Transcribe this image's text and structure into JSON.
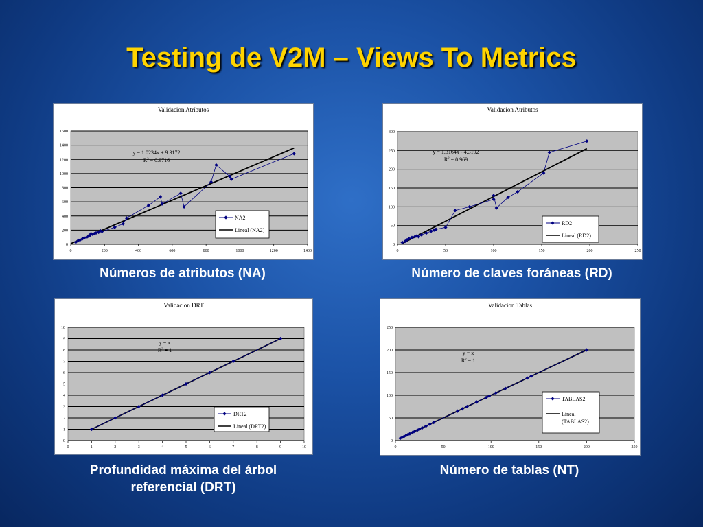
{
  "slide": {
    "title": "Testing de V2M – Views To Metrics",
    "captions": [
      "Números de atributos (NA)",
      "Número de claves foráneas (RD)",
      "Profundidad máxima del  árbol referencial (DRT)",
      "Número de tablas (NT)"
    ]
  },
  "colors": {
    "title": "#ffd400",
    "plot_area": "#c0c0c0",
    "series": "#000080",
    "trend": "#000000"
  },
  "chart_data": [
    {
      "type": "scatter",
      "title": "Validacion Atributos",
      "xlim": [
        0,
        1400
      ],
      "ylim": [
        0,
        1600
      ],
      "xticks": [
        0,
        200,
        400,
        600,
        800,
        1000,
        1200,
        1400
      ],
      "yticks": [
        0,
        200,
        400,
        600,
        800,
        1000,
        1200,
        1400,
        1600
      ],
      "series": [
        {
          "name": "NA2",
          "points": [
            [
              30,
              30
            ],
            [
              45,
              55
            ],
            [
              55,
              60
            ],
            [
              70,
              80
            ],
            [
              80,
              90
            ],
            [
              95,
              100
            ],
            [
              105,
              115
            ],
            [
              115,
              130
            ],
            [
              120,
              150
            ],
            [
              130,
              140
            ],
            [
              140,
              150
            ],
            [
              150,
              160
            ],
            [
              165,
              170
            ],
            [
              175,
              190
            ],
            [
              185,
              180
            ],
            [
              260,
              240
            ],
            [
              310,
              290
            ],
            [
              330,
              370
            ],
            [
              460,
              550
            ],
            [
              530,
              670
            ],
            [
              540,
              570
            ],
            [
              650,
              720
            ],
            [
              670,
              530
            ],
            [
              830,
              880
            ],
            [
              860,
              1120
            ],
            [
              940,
              960
            ],
            [
              950,
              920
            ],
            [
              1320,
              1280
            ]
          ]
        }
      ],
      "trendline": {
        "name": "Lineal (NA2)",
        "slope": 1.0234,
        "intercept": 9.3172,
        "x_range": [
          0,
          1320
        ],
        "equation": "y = 1.0234x + 9.3172",
        "r2_label": "R",
        "r2_sup": "2",
        "r2_value": " = 0.9716"
      },
      "legend": "right-bottom"
    },
    {
      "type": "scatter",
      "title": "Validacion Atributos",
      "xlim": [
        0,
        250
      ],
      "ylim": [
        0,
        300
      ],
      "xticks": [
        0,
        50,
        100,
        150,
        200,
        250
      ],
      "yticks": [
        0,
        50,
        100,
        150,
        200,
        250,
        300
      ],
      "series": [
        {
          "name": "RD2",
          "points": [
            [
              5,
              5
            ],
            [
              8,
              8
            ],
            [
              10,
              12
            ],
            [
              12,
              15
            ],
            [
              15,
              18
            ],
            [
              18,
              20
            ],
            [
              20,
              22
            ],
            [
              22,
              20
            ],
            [
              25,
              25
            ],
            [
              30,
              30
            ],
            [
              35,
              35
            ],
            [
              38,
              38
            ],
            [
              40,
              40
            ],
            [
              50,
              45
            ],
            [
              60,
              90
            ],
            [
              75,
              100
            ],
            [
              100,
              120
            ],
            [
              100,
              130
            ],
            [
              103,
              97
            ],
            [
              115,
              125
            ],
            [
              125,
              140
            ],
            [
              152,
              190
            ],
            [
              158,
              245
            ],
            [
              197,
              275
            ]
          ]
        }
      ],
      "trendline": {
        "name": "Lineal (RD2)",
        "slope": 1.3164,
        "intercept": -4.3192,
        "x_range": [
          5,
          197
        ],
        "equation": "y = 1.3164x - 4.3192",
        "r2_label": "R",
        "r2_sup": "2",
        "r2_value": " = 0.969"
      },
      "legend": "right-bottom"
    },
    {
      "type": "scatter",
      "title": "Validacion DRT",
      "xlim": [
        0,
        10
      ],
      "ylim": [
        0,
        10
      ],
      "xticks": [
        0,
        1,
        2,
        3,
        4,
        5,
        6,
        7,
        8,
        9,
        10
      ],
      "yticks": [
        0,
        1,
        2,
        3,
        4,
        5,
        6,
        7,
        8,
        9,
        10
      ],
      "series": [
        {
          "name": "DRT2",
          "points": [
            [
              1,
              1
            ],
            [
              2,
              2
            ],
            [
              3,
              3
            ],
            [
              4,
              4
            ],
            [
              5,
              5
            ],
            [
              6,
              6
            ],
            [
              7,
              7
            ],
            [
              9,
              9
            ]
          ]
        }
      ],
      "trendline": {
        "name": "Lineal (DRT2)",
        "slope": 1,
        "intercept": 0,
        "x_range": [
          1,
          9
        ],
        "equation": "y = x",
        "r2_label": "R",
        "r2_sup": "2",
        "r2_value": " = 1"
      },
      "legend": "right-bottom"
    },
    {
      "type": "scatter",
      "title": "Validacion Tablas",
      "xlim": [
        0,
        250
      ],
      "ylim": [
        0,
        250
      ],
      "xticks": [
        0,
        50,
        100,
        150,
        200,
        250
      ],
      "yticks": [
        0,
        50,
        100,
        150,
        200,
        250
      ],
      "series": [
        {
          "name": "TABLAS2",
          "points": [
            [
              5,
              5
            ],
            [
              7,
              7
            ],
            [
              9,
              9
            ],
            [
              11,
              11
            ],
            [
              13,
              13
            ],
            [
              15,
              15
            ],
            [
              18,
              18
            ],
            [
              20,
              20
            ],
            [
              23,
              23
            ],
            [
              25,
              25
            ],
            [
              28,
              28
            ],
            [
              32,
              32
            ],
            [
              36,
              36
            ],
            [
              40,
              40
            ],
            [
              65,
              65
            ],
            [
              70,
              70
            ],
            [
              75,
              75
            ],
            [
              85,
              85
            ],
            [
              95,
              95
            ],
            [
              98,
              98
            ],
            [
              105,
              105
            ],
            [
              115,
              115
            ],
            [
              138,
              138
            ],
            [
              142,
              142
            ],
            [
              200,
              200
            ]
          ]
        }
      ],
      "trendline": {
        "name": "Lineal (TABLAS2)",
        "name_lines": [
          "Lineal",
          "(TABLAS2)"
        ],
        "slope": 1,
        "intercept": 0,
        "x_range": [
          5,
          200
        ],
        "equation": "y = x",
        "r2_label": "R",
        "r2_sup": "2",
        "r2_value": " = 1"
      },
      "legend": "right-bottom"
    }
  ]
}
